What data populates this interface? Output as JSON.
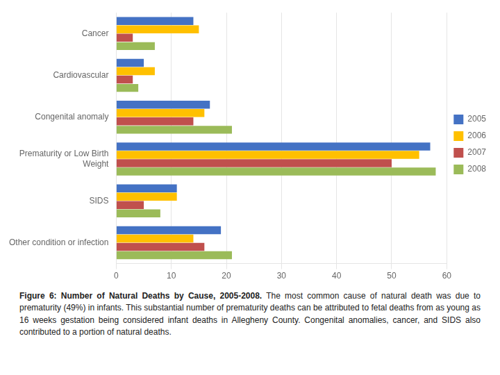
{
  "chart_data": {
    "type": "bar",
    "orientation": "horizontal",
    "title": "Figure 6: Number of Natural Deaths by Cause, 2005-2008.",
    "subtitle": "The most common cause of natural death was due to prematurity (49%) in infants. This substantial number of prematurity deaths can be attributed to fetal deaths from as young as 16 weeks gestation being considered infant deaths in Allegheny County. Congenital anomalies, cancer, and SIDS also contributed to a portion of natural deaths.",
    "categories": [
      "Cancer",
      "Cardiovascular",
      "Congenital anomaly",
      "Prematurity or Low Birth\nWeight",
      "SIDS",
      "Other condition or infection"
    ],
    "series": [
      {
        "name": "2005",
        "color": "#4472C4",
        "values": [
          14,
          5,
          17,
          57,
          11,
          19
        ]
      },
      {
        "name": "2006",
        "color": "#FFC000",
        "values": [
          15,
          7,
          16,
          55,
          11,
          14
        ]
      },
      {
        "name": "2007",
        "color": "#C0504D",
        "values": [
          3,
          3,
          14,
          50,
          5,
          16
        ]
      },
      {
        "name": "2008",
        "color": "#9BBB59",
        "values": [
          7,
          4,
          21,
          58,
          8,
          21
        ]
      }
    ],
    "xlim": [
      0,
      60
    ],
    "xticks": [
      0,
      10,
      20,
      30,
      40,
      50,
      60
    ],
    "grid": true,
    "legend": "right"
  }
}
